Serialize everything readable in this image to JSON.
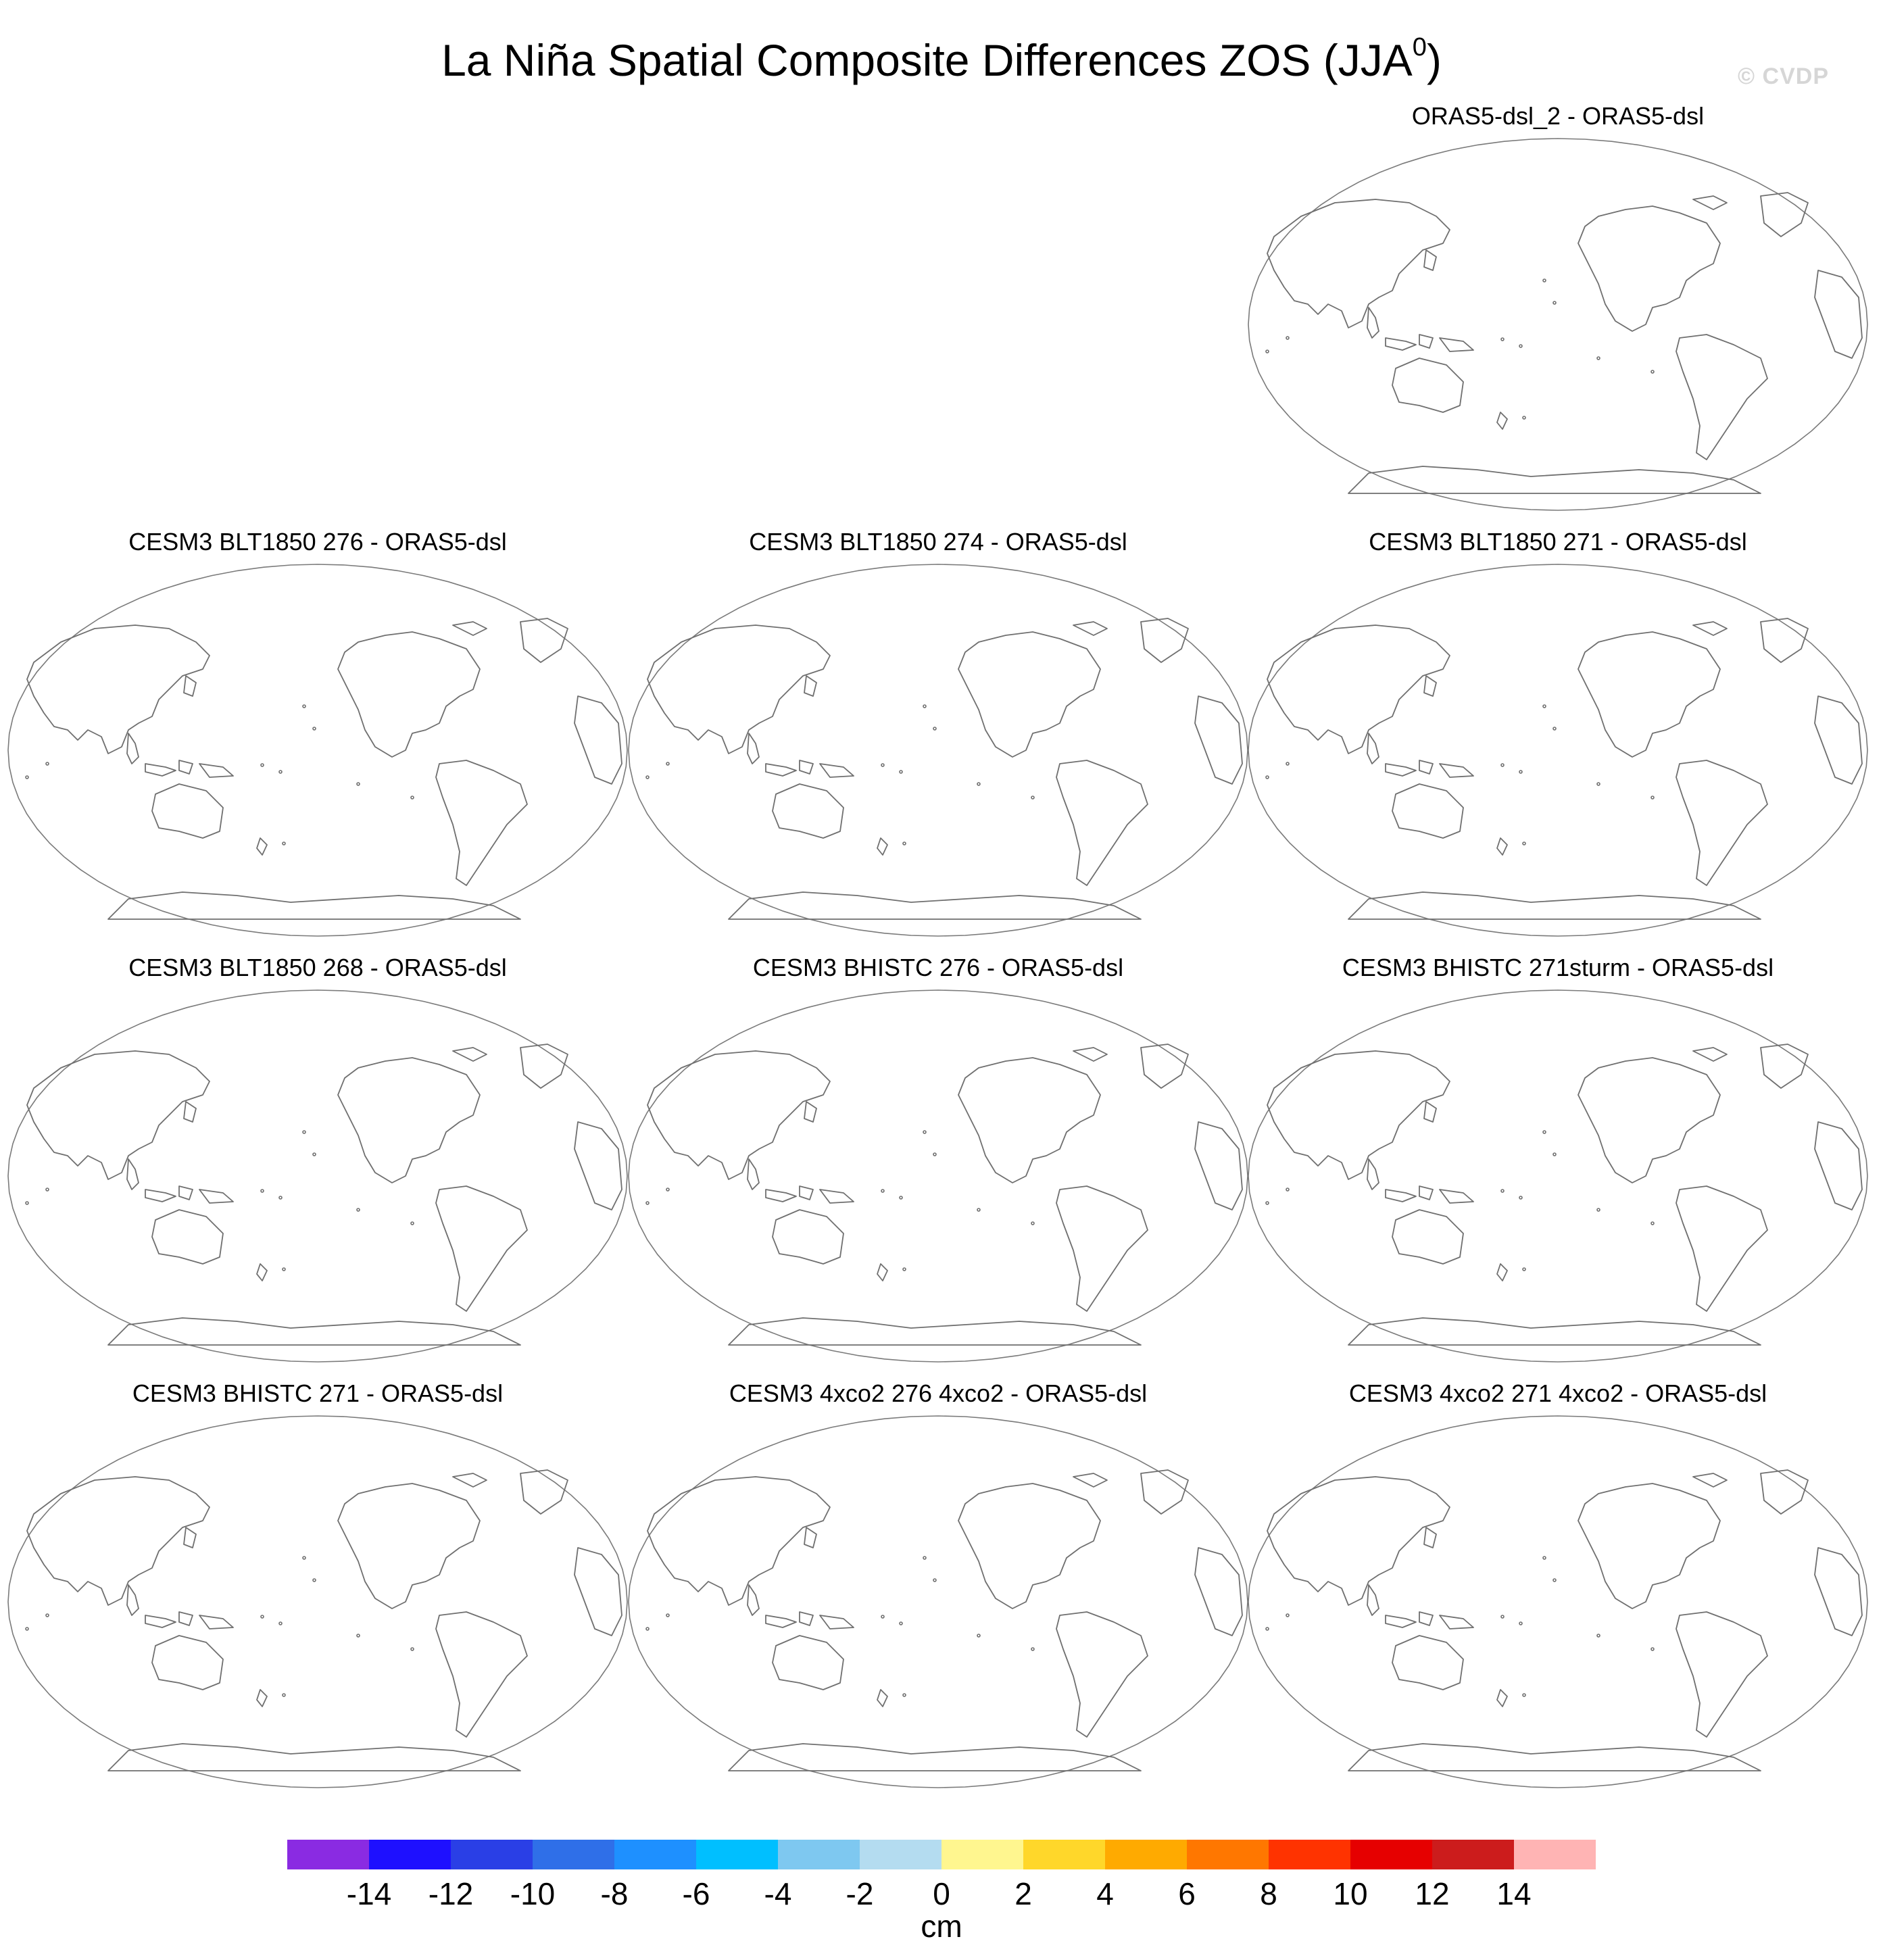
{
  "title": "La Niña Spatial Composite Differences ZOS (JJA",
  "title_superscript": "0",
  "title_suffix": ")",
  "watermark": "© CVDP",
  "panels": [
    {
      "title": "ORAS5-dsl_2 - ORAS5-dsl"
    },
    {
      "title": "CESM3 BLT1850 276 - ORAS5-dsl"
    },
    {
      "title": "CESM3 BLT1850 274 - ORAS5-dsl"
    },
    {
      "title": "CESM3 BLT1850 271 - ORAS5-dsl"
    },
    {
      "title": "CESM3 BLT1850 268 - ORAS5-dsl"
    },
    {
      "title": "CESM3 BHISTC 276 - ORAS5-dsl"
    },
    {
      "title": "CESM3 BHISTC 271sturm - ORAS5-dsl"
    },
    {
      "title": "CESM3 BHISTC 271 - ORAS5-dsl"
    },
    {
      "title": "CESM3 4xco2 276 4xco2 - ORAS5-dsl"
    },
    {
      "title": "CESM3 4xco2 271 4xco2 - ORAS5-dsl"
    }
  ],
  "colorbar": {
    "units": "cm",
    "tick_labels": [
      "-14",
      "-12",
      "-10",
      "-8",
      "-6",
      "-4",
      "-2",
      "0",
      "2",
      "4",
      "6",
      "8",
      "10",
      "12",
      "14"
    ],
    "colors": [
      "#8a2be2",
      "#1e10ff",
      "#2a3fe6",
      "#2f6fe8",
      "#1e90ff",
      "#00bfff",
      "#7ec8f0",
      "#b4dcf0",
      "#fff68f",
      "#ffd72a",
      "#ffaa00",
      "#ff7700",
      "#ff3300",
      "#e60000",
      "#cc1c1c",
      "#ffb4b4"
    ]
  }
}
